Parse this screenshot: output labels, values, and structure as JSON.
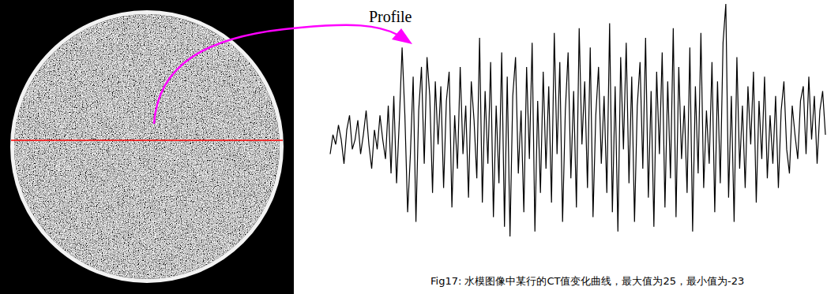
{
  "chart_data": {
    "type": "line",
    "title": "Fig17: 水模图像中某行的CT值变化曲线，最大值为25，最小值为-23",
    "annotations": [
      "Profile"
    ],
    "color": "#000000",
    "tick_labels": false,
    "grid": false,
    "xlim": [
      0,
      179
    ],
    "ylim": [
      -23,
      25
    ],
    "x": [
      0,
      1,
      2,
      3,
      4,
      5,
      6,
      7,
      8,
      9,
      10,
      11,
      12,
      13,
      14,
      15,
      16,
      17,
      18,
      19,
      20,
      21,
      22,
      23,
      24,
      25,
      26,
      27,
      28,
      29,
      30,
      31,
      32,
      33,
      34,
      35,
      36,
      37,
      38,
      39,
      40,
      41,
      42,
      43,
      44,
      45,
      46,
      47,
      48,
      49,
      50,
      51,
      52,
      53,
      54,
      55,
      56,
      57,
      58,
      59,
      60,
      61,
      62,
      63,
      64,
      65,
      66,
      67,
      68,
      69,
      70,
      71,
      72,
      73,
      74,
      75,
      76,
      77,
      78,
      79,
      80,
      81,
      82,
      83,
      84,
      85,
      86,
      87,
      88,
      89,
      90,
      91,
      92,
      93,
      94,
      95,
      96,
      97,
      98,
      99,
      100,
      101,
      102,
      103,
      104,
      105,
      106,
      107,
      108,
      109,
      110,
      111,
      112,
      113,
      114,
      115,
      116,
      117,
      118,
      119,
      120,
      121,
      122,
      123,
      124,
      125,
      126,
      127,
      128,
      129,
      130,
      131,
      132,
      133,
      134,
      135,
      136,
      137,
      138,
      139,
      140,
      141,
      142,
      143,
      144,
      145,
      146,
      147,
      148,
      149,
      150,
      151,
      152,
      153,
      154,
      155,
      156,
      157,
      158,
      159,
      160,
      161,
      162,
      163,
      164,
      165,
      166,
      167,
      168,
      169,
      170,
      171,
      172,
      173,
      174,
      175,
      176,
      177,
      178,
      179
    ],
    "values": [
      -6,
      -2,
      -4,
      0,
      -3,
      -8,
      -1,
      2,
      -5,
      -3,
      1,
      -6,
      -2,
      3,
      -4,
      -9,
      -1,
      -5,
      2,
      -3,
      -7,
      4,
      -10,
      6,
      -12,
      1,
      16,
      2,
      -18,
      -6,
      10,
      -20,
      3,
      12,
      -8,
      14,
      6,
      -14,
      9,
      -4,
      8,
      -13,
      5,
      11,
      -17,
      2,
      -9,
      12,
      -6,
      4,
      -15,
      9,
      1,
      -11,
      18,
      -16,
      7,
      -8,
      13,
      -19,
      4,
      -12,
      15,
      -21,
      10,
      -23,
      6,
      14,
      -10,
      3,
      -18,
      12,
      -7,
      17,
      -22,
      5,
      -14,
      11,
      -9,
      8,
      -16,
      19,
      -6,
      13,
      -20,
      3,
      15,
      -11,
      7,
      -17,
      20,
      -4,
      9,
      -13,
      16,
      -19,
      2,
      12,
      -8,
      6,
      -14,
      21,
      -18,
      8,
      -22,
      14,
      -5,
      17,
      -12,
      10,
      -20,
      4,
      13,
      -9,
      18,
      -15,
      7,
      -21,
      11,
      -6,
      15,
      -17,
      9,
      -11,
      20,
      -19,
      12,
      -7,
      4,
      -14,
      16,
      -22,
      8,
      -10,
      19,
      -13,
      3,
      -8,
      13,
      -18,
      9,
      -12,
      17,
      25,
      -15,
      6,
      -20,
      14,
      -9,
      4,
      -13,
      8,
      -4,
      11,
      -16,
      5,
      -7,
      10,
      -11,
      2,
      -8,
      6,
      -13,
      3,
      9,
      -5,
      -10,
      4,
      -2,
      -7,
      5,
      8,
      -6,
      10,
      -3,
      6,
      -8,
      3,
      7,
      -2
    ]
  }
}
